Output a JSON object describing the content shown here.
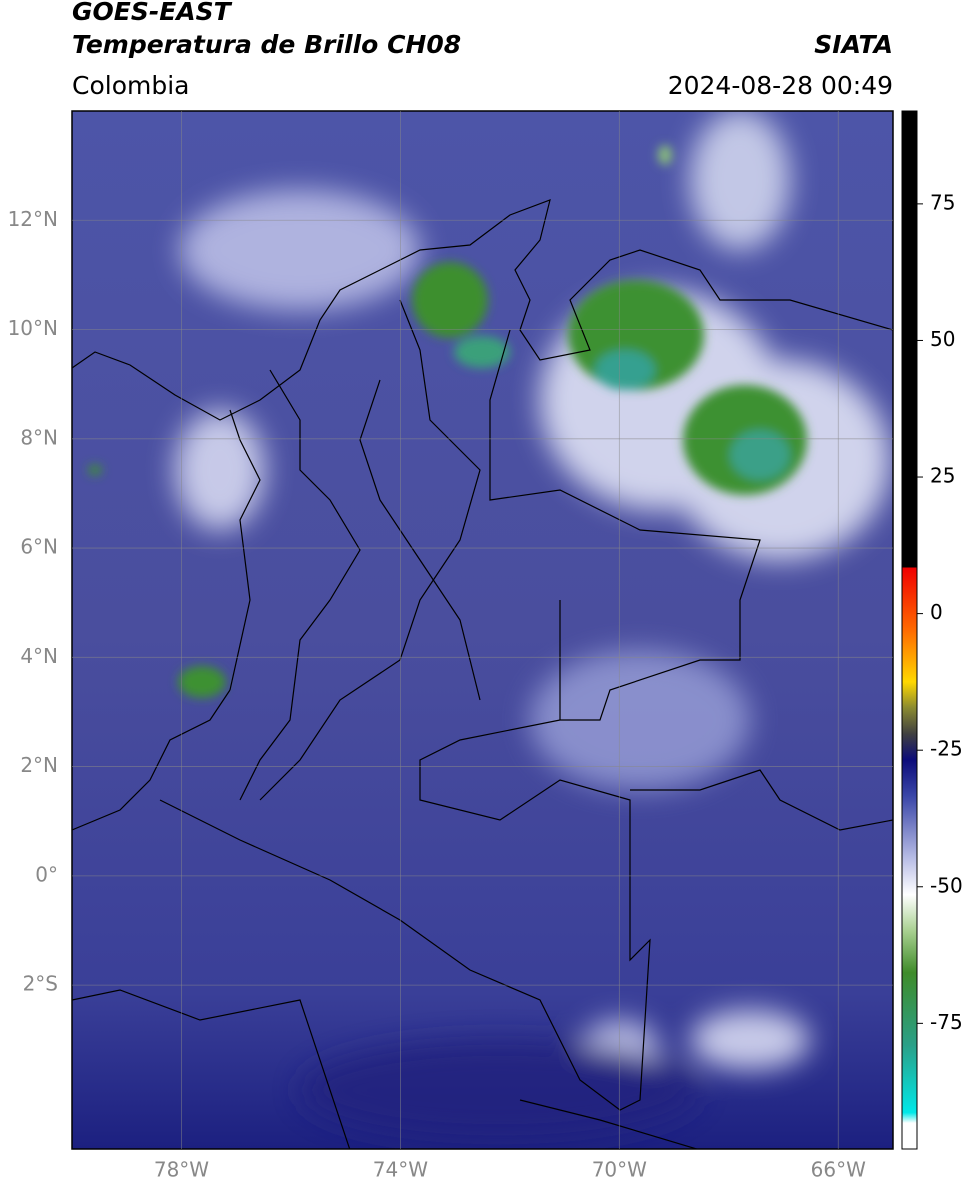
{
  "map": {
    "title": "GOES-EAST",
    "subtitle": "Temperatura de Brillo CH08",
    "source": "SIATA",
    "region": "Colombia",
    "datetime": "2024-08-28 00:49",
    "lonlim": [
      -80,
      -65
    ],
    "latlim": [
      -5,
      14
    ],
    "lon_ticks": [
      {
        "value": -78,
        "label": "78°W"
      },
      {
        "value": -74,
        "label": "74°W"
      },
      {
        "value": -70,
        "label": "70°W"
      },
      {
        "value": -66,
        "label": "66°W"
      }
    ],
    "lat_ticks": [
      {
        "value": 12,
        "label": "12°N"
      },
      {
        "value": 10,
        "label": "10°N"
      },
      {
        "value": 8,
        "label": "8°N"
      },
      {
        "value": 6,
        "label": "6°N"
      },
      {
        "value": 4,
        "label": "4°N"
      },
      {
        "value": 2,
        "label": "2°N"
      },
      {
        "value": 0,
        "label": "0°"
      },
      {
        "value": -2,
        "label": "2°S"
      }
    ],
    "colorbar": {
      "lim": [
        -98,
        92
      ],
      "ticks": [
        75,
        50,
        25,
        0,
        -25,
        -50,
        -75
      ]
    }
  }
}
